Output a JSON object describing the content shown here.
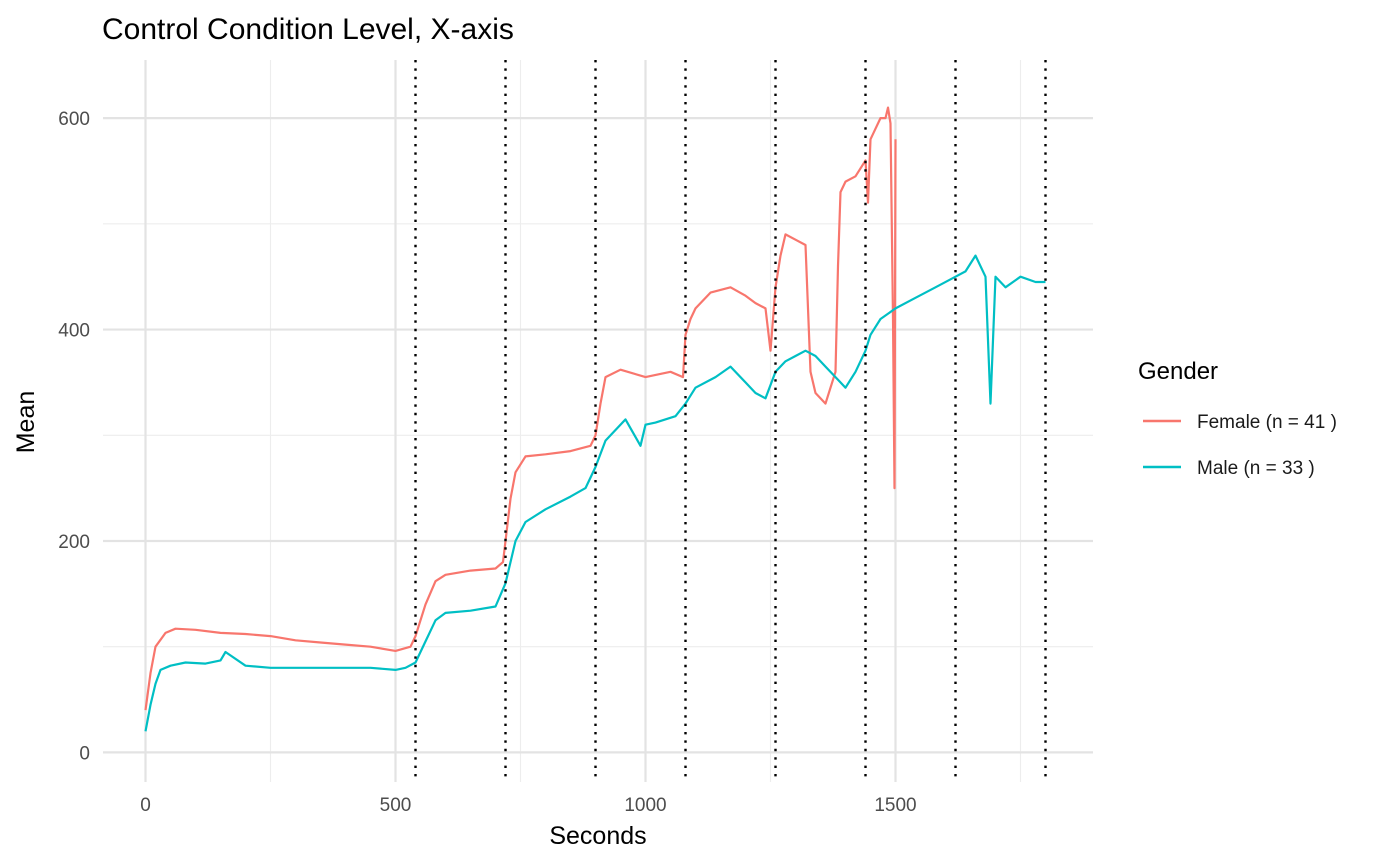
{
  "chart_data": {
    "type": "line",
    "title": "Control Condition Level, X-axis",
    "xlabel": "Seconds",
    "ylabel": "Mean",
    "xlim": [
      -85,
      1895
    ],
    "ylim": [
      -28,
      655
    ],
    "x_ticks": [
      0,
      500,
      1000,
      1500
    ],
    "x_tick_labels": [
      "0",
      "500",
      "1000",
      "1500"
    ],
    "y_ticks": [
      0,
      200,
      400,
      600
    ],
    "y_tick_labels": [
      "0",
      "200",
      "400",
      "600"
    ],
    "x_minor_grid": [
      250,
      750,
      1250,
      1750
    ],
    "y_minor_grid": [
      100,
      300,
      500
    ],
    "grid": true,
    "legend": {
      "title": "Gender",
      "position": "right",
      "entries": [
        "Female (n = 41 )",
        "Male (n = 33 )"
      ]
    },
    "vlines": {
      "style": "dotted",
      "color": "#000000",
      "x": [
        540,
        720,
        900,
        1080,
        1260,
        1440,
        1620,
        1800
      ]
    },
    "series": [
      {
        "name": "Female (n = 41 )",
        "color": "#F8766D",
        "x": [
          0,
          10,
          20,
          40,
          60,
          100,
          150,
          200,
          250,
          300,
          350,
          400,
          450,
          500,
          530,
          540,
          560,
          580,
          600,
          650,
          700,
          715,
          720,
          730,
          740,
          760,
          800,
          850,
          890,
          900,
          910,
          920,
          950,
          1000,
          1050,
          1075,
          1080,
          1090,
          1100,
          1130,
          1170,
          1200,
          1220,
          1240,
          1250,
          1260,
          1270,
          1280,
          1300,
          1320,
          1330,
          1340,
          1360,
          1380,
          1385,
          1390,
          1400,
          1420,
          1440,
          1445,
          1450,
          1460,
          1470,
          1480,
          1485,
          1490,
          1495,
          1498,
          1500
        ],
        "y": [
          40,
          75,
          100,
          113,
          117,
          116,
          113,
          112,
          110,
          106,
          104,
          102,
          100,
          96,
          100,
          110,
          140,
          162,
          168,
          172,
          174,
          180,
          200,
          240,
          265,
          280,
          282,
          285,
          290,
          300,
          330,
          355,
          362,
          355,
          360,
          355,
          395,
          410,
          420,
          435,
          440,
          432,
          425,
          420,
          380,
          440,
          470,
          490,
          485,
          480,
          360,
          340,
          330,
          360,
          460,
          530,
          540,
          545,
          560,
          520,
          580,
          590,
          600,
          600,
          610,
          595,
          410,
          250,
          580
        ]
      },
      {
        "name": "Male (n = 33 )",
        "color": "#00BFC4",
        "x": [
          0,
          10,
          20,
          30,
          50,
          80,
          120,
          150,
          160,
          200,
          250,
          300,
          350,
          400,
          450,
          500,
          520,
          540,
          560,
          580,
          600,
          650,
          700,
          720,
          740,
          760,
          800,
          850,
          880,
          900,
          920,
          940,
          960,
          990,
          1000,
          1020,
          1060,
          1080,
          1100,
          1140,
          1170,
          1200,
          1220,
          1240,
          1260,
          1280,
          1300,
          1320,
          1340,
          1360,
          1380,
          1400,
          1420,
          1440,
          1450,
          1470,
          1500,
          1540,
          1580,
          1620,
          1640,
          1660,
          1680,
          1690,
          1700,
          1720,
          1750,
          1780,
          1800
        ],
        "y": [
          20,
          45,
          65,
          78,
          82,
          85,
          84,
          87,
          95,
          82,
          80,
          80,
          80,
          80,
          80,
          78,
          80,
          85,
          105,
          125,
          132,
          134,
          138,
          160,
          200,
          218,
          230,
          242,
          250,
          270,
          295,
          305,
          315,
          290,
          310,
          312,
          318,
          330,
          345,
          355,
          365,
          350,
          340,
          335,
          360,
          370,
          375,
          380,
          375,
          365,
          355,
          345,
          360,
          380,
          395,
          410,
          420,
          430,
          440,
          450,
          455,
          470,
          450,
          330,
          450,
          440,
          450,
          445,
          445
        ]
      }
    ]
  }
}
